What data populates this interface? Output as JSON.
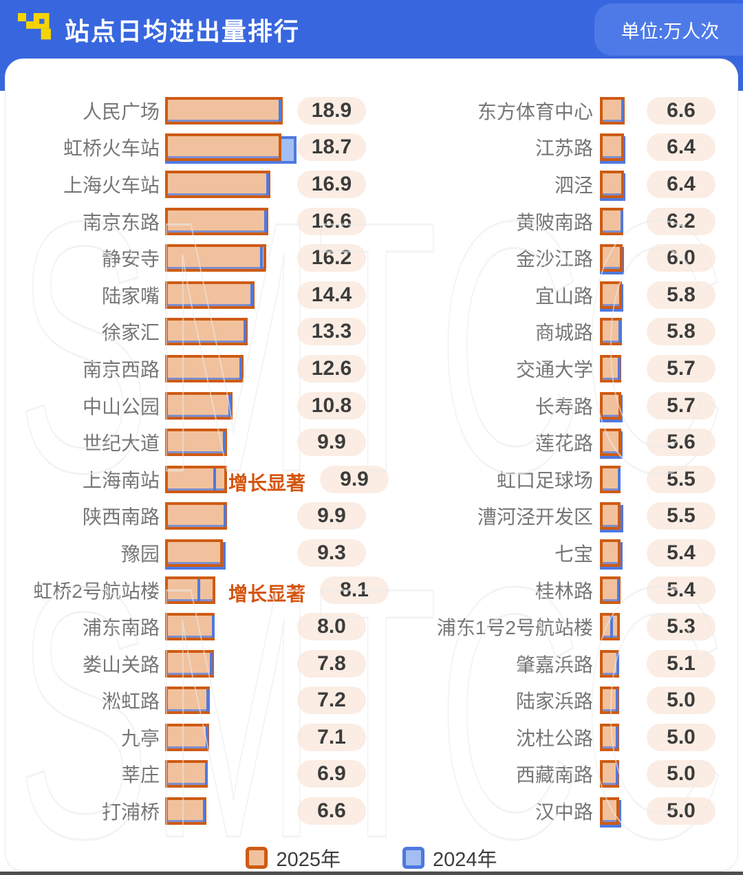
{
  "header": {
    "title": "站点日均进出量排行",
    "unit_badge": "单位:万人次"
  },
  "watermark_text": "SMTCC",
  "legend": {
    "items": [
      {
        "label": "2025年",
        "color": "#CE5B13",
        "fill": "#F1C19D"
      },
      {
        "label": "2024年",
        "color": "#4F79DF",
        "fill": "#A3BEF2"
      }
    ]
  },
  "colors": {
    "header_bg": "#3866DE",
    "badge_bg": "#4E7AE8",
    "bar_2025_fill": "#F1C19D",
    "bar_2025_border": "#CE5B13",
    "bar_2024_fill": "#A3BEF2",
    "bar_2024_border": "#4F79DF",
    "value_pill_bg": "#FBEDE3",
    "annotation": "#D4540E",
    "label_text": "#767676",
    "value_text": "#3C3C3C"
  },
  "chart_data": {
    "type": "bar",
    "title": "站点日均进出量排行",
    "unit": "万人次",
    "series_names": [
      "2025年",
      "2024年"
    ],
    "legend_position": "bottom",
    "annotation_label": "增长显著",
    "left_column": [
      {
        "station": "人民广场",
        "value_2025": 18.9,
        "value_2024_est": 18.7,
        "annotation": ""
      },
      {
        "station": "虹桥火车站",
        "value_2025": 18.7,
        "value_2024_est": 21.1,
        "annotation": ""
      },
      {
        "station": "上海火车站",
        "value_2025": 16.9,
        "value_2024_est": 16.7,
        "annotation": ""
      },
      {
        "station": "南京东路",
        "value_2025": 16.6,
        "value_2024_est": 16.4,
        "annotation": ""
      },
      {
        "station": "静安寺",
        "value_2025": 16.2,
        "value_2024_est": 15.7,
        "annotation": ""
      },
      {
        "station": "陆家嘴",
        "value_2025": 14.4,
        "value_2024_est": 14.1,
        "annotation": ""
      },
      {
        "station": "徐家汇",
        "value_2025": 13.3,
        "value_2024_est": 13.0,
        "annotation": ""
      },
      {
        "station": "南京西路",
        "value_2025": 12.6,
        "value_2024_est": 12.4,
        "annotation": ""
      },
      {
        "station": "中山公园",
        "value_2025": 10.8,
        "value_2024_est": 10.6,
        "annotation": ""
      },
      {
        "station": "世纪大道",
        "value_2025": 9.9,
        "value_2024_est": 9.7,
        "annotation": ""
      },
      {
        "station": "上海南站",
        "value_2025": 9.9,
        "value_2024_est": 8.2,
        "annotation": "增长显著"
      },
      {
        "station": "陕西南路",
        "value_2025": 9.9,
        "value_2024_est": 9.8,
        "annotation": ""
      },
      {
        "station": "豫园",
        "value_2025": 9.3,
        "value_2024_est": 9.7,
        "annotation": ""
      },
      {
        "station": "虹桥2号航站楼",
        "value_2025": 8.1,
        "value_2024_est": 5.6,
        "annotation": "增长显著"
      },
      {
        "station": "浦东南路",
        "value_2025": 8.0,
        "value_2024_est": 7.9,
        "annotation": ""
      },
      {
        "station": "娄山关路",
        "value_2025": 7.8,
        "value_2024_est": 7.6,
        "annotation": ""
      },
      {
        "station": "淞虹路",
        "value_2025": 7.2,
        "value_2024_est": 7.1,
        "annotation": ""
      },
      {
        "station": "九亭",
        "value_2025": 7.1,
        "value_2024_est": 7.0,
        "annotation": ""
      },
      {
        "station": "莘庄",
        "value_2025": 6.9,
        "value_2024_est": 6.9,
        "annotation": ""
      },
      {
        "station": "打浦桥",
        "value_2025": 6.6,
        "value_2024_est": 6.5,
        "annotation": ""
      }
    ],
    "right_column": [
      {
        "station": "东方体育中心",
        "value_2025": 6.6,
        "value_2024_est": 6.4,
        "annotation": ""
      },
      {
        "station": "江苏路",
        "value_2025": 6.4,
        "value_2024_est": 6.8,
        "annotation": ""
      },
      {
        "station": "泗泾",
        "value_2025": 6.4,
        "value_2024_est": 6.7,
        "annotation": ""
      },
      {
        "station": "黄陂南路",
        "value_2025": 6.2,
        "value_2024_est": 6.1,
        "annotation": ""
      },
      {
        "station": "金沙江路",
        "value_2025": 6.0,
        "value_2024_est": 6.3,
        "annotation": ""
      },
      {
        "station": "宜山路",
        "value_2025": 5.8,
        "value_2024_est": 6.2,
        "annotation": ""
      },
      {
        "station": "商城路",
        "value_2025": 5.8,
        "value_2024_est": 5.7,
        "annotation": ""
      },
      {
        "station": "交通大学",
        "value_2025": 5.7,
        "value_2024_est": 5.5,
        "annotation": ""
      },
      {
        "station": "长寿路",
        "value_2025": 5.7,
        "value_2024_est": 6.0,
        "annotation": ""
      },
      {
        "station": "莲花路",
        "value_2025": 5.6,
        "value_2024_est": 6.0,
        "annotation": ""
      },
      {
        "station": "虹口足球场",
        "value_2025": 5.5,
        "value_2024_est": 5.4,
        "annotation": ""
      },
      {
        "station": "漕河泾开发区",
        "value_2025": 5.5,
        "value_2024_est": 6.1,
        "annotation": ""
      },
      {
        "station": "七宝",
        "value_2025": 5.4,
        "value_2024_est": 5.9,
        "annotation": ""
      },
      {
        "station": "桂林路",
        "value_2025": 5.4,
        "value_2024_est": 5.2,
        "annotation": ""
      },
      {
        "station": "浦东1号2号航站楼",
        "value_2025": 5.3,
        "value_2024_est": 3.4,
        "annotation": ""
      },
      {
        "station": "肇嘉浜路",
        "value_2025": 5.1,
        "value_2024_est": 5.0,
        "annotation": ""
      },
      {
        "station": "陆家浜路",
        "value_2025": 5.0,
        "value_2024_est": 4.9,
        "annotation": ""
      },
      {
        "station": "沈杜公路",
        "value_2025": 5.0,
        "value_2024_est": 4.9,
        "annotation": ""
      },
      {
        "station": "西藏南路",
        "value_2025": 5.0,
        "value_2024_est": 4.9,
        "annotation": ""
      },
      {
        "station": "汉中路",
        "value_2025": 5.0,
        "value_2024_est": 5.7,
        "annotation": ""
      }
    ]
  }
}
